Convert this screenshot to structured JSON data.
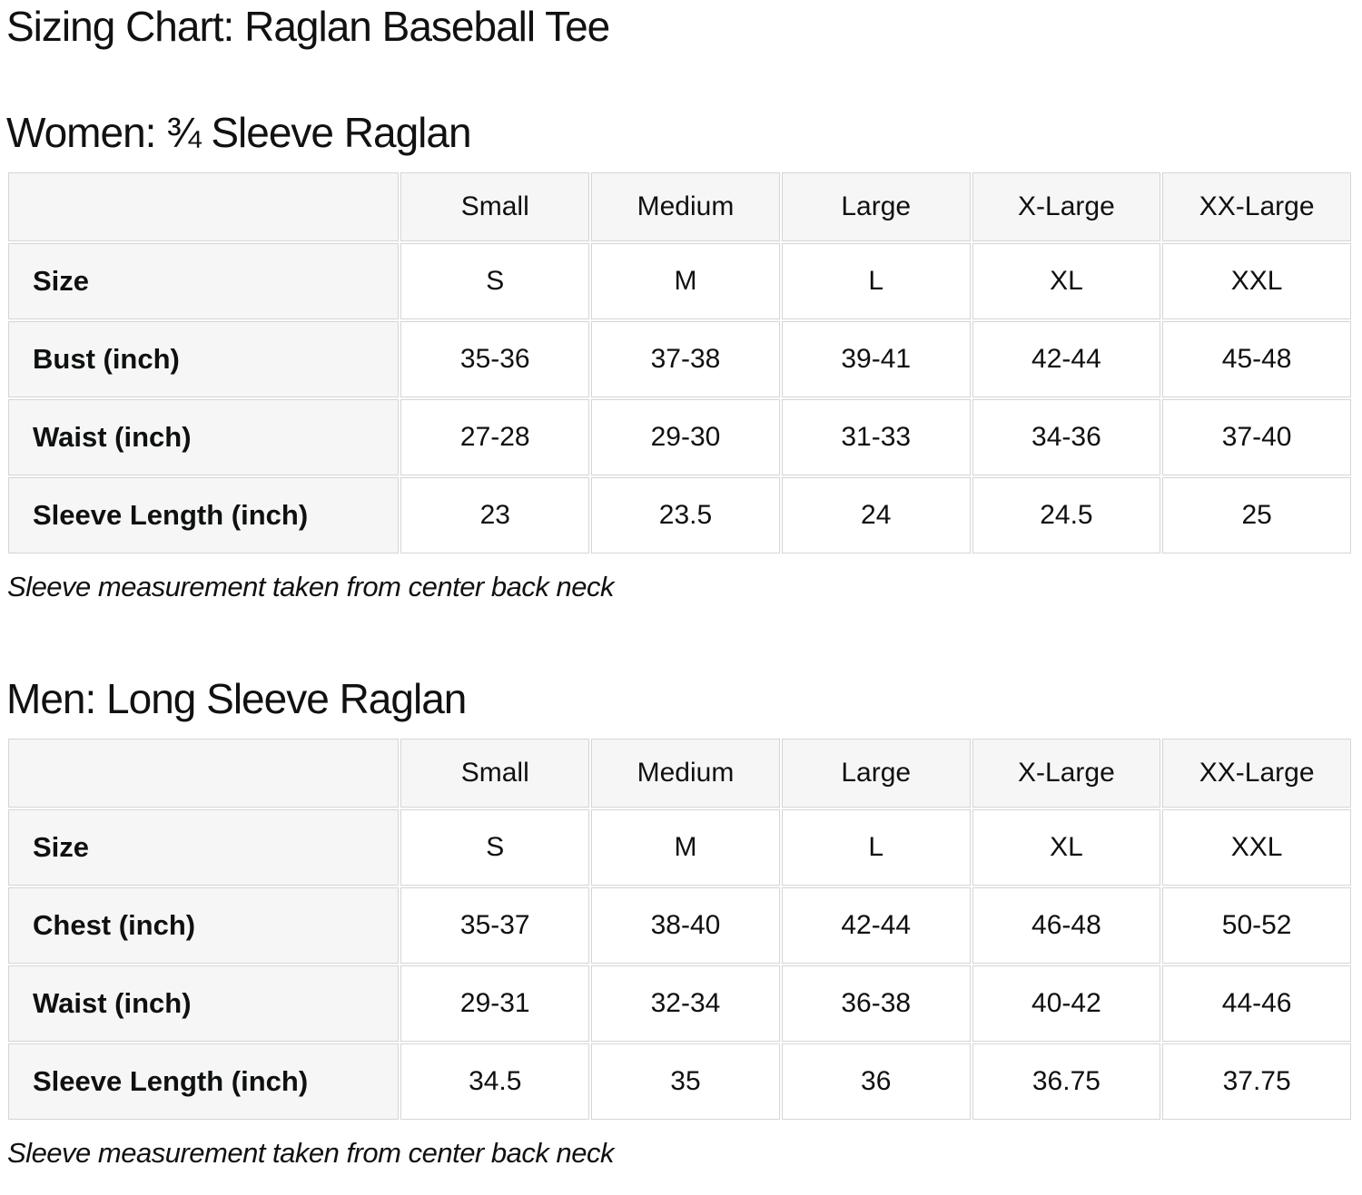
{
  "page": {
    "title": "Sizing Chart: Raglan Baseball Tee"
  },
  "colors": {
    "cell_header_bg": "#f6f6f6",
    "cell_data_bg": "#ffffff",
    "border": "#d5d5d5",
    "text": "#0f1111"
  },
  "sections": [
    {
      "heading": "Women: ¾ Sleeve Raglan",
      "note": "Sleeve measurement taken from center back neck",
      "table": {
        "columns": [
          "Small",
          "Medium",
          "Large",
          "X-Large",
          "XX-Large"
        ],
        "rows": [
          {
            "label": "Size",
            "values": [
              "S",
              "M",
              "L",
              "XL",
              "XXL"
            ]
          },
          {
            "label": "Bust (inch)",
            "values": [
              "35-36",
              "37-38",
              "39-41",
              "42-44",
              "45-48"
            ]
          },
          {
            "label": "Waist (inch)",
            "values": [
              "27-28",
              "29-30",
              "31-33",
              "34-36",
              "37-40"
            ]
          },
          {
            "label": "Sleeve Length (inch)",
            "values": [
              "23",
              "23.5",
              "24",
              "24.5",
              "25"
            ]
          }
        ]
      }
    },
    {
      "heading": "Men: Long Sleeve Raglan",
      "note": "Sleeve measurement taken from center back neck",
      "table": {
        "columns": [
          "Small",
          "Medium",
          "Large",
          "X-Large",
          "XX-Large"
        ],
        "rows": [
          {
            "label": "Size",
            "values": [
              "S",
              "M",
              "L",
              "XL",
              "XXL"
            ]
          },
          {
            "label": "Chest (inch)",
            "values": [
              "35-37",
              "38-40",
              "42-44",
              "46-48",
              "50-52"
            ]
          },
          {
            "label": "Waist (inch)",
            "values": [
              "29-31",
              "32-34",
              "36-38",
              "40-42",
              "44-46"
            ]
          },
          {
            "label": "Sleeve Length (inch)",
            "values": [
              "34.5",
              "35",
              "36",
              "36.75",
              "37.75"
            ]
          }
        ]
      }
    }
  ]
}
